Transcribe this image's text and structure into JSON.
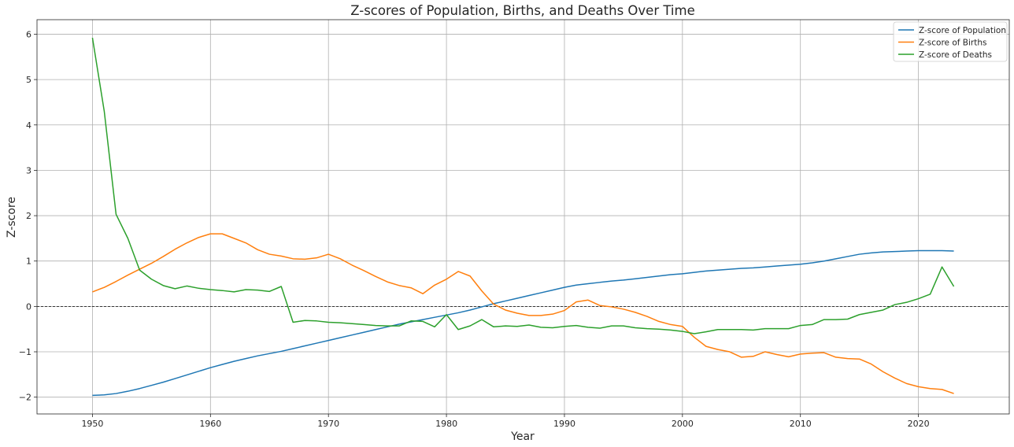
{
  "chart_data": {
    "type": "line",
    "title": "Z-scores of Population, Births, and Deaths Over Time",
    "xlabel": "Year",
    "ylabel": "Z-score",
    "xlim": [
      1945.3,
      2027.7
    ],
    "ylim": [
      -2.37,
      6.32
    ],
    "xticks": [
      1950,
      1960,
      1970,
      1980,
      1990,
      2000,
      2010,
      2020
    ],
    "yticks": [
      -2,
      -1,
      0,
      1,
      2,
      3,
      4,
      5,
      6
    ],
    "grid": true,
    "zero_line": true,
    "legend_position": "top-right",
    "x": [
      1950,
      1951,
      1952,
      1953,
      1954,
      1955,
      1956,
      1957,
      1958,
      1959,
      1960,
      1961,
      1962,
      1963,
      1964,
      1965,
      1966,
      1967,
      1968,
      1969,
      1970,
      1971,
      1972,
      1973,
      1974,
      1975,
      1976,
      1977,
      1978,
      1979,
      1980,
      1981,
      1982,
      1983,
      1984,
      1985,
      1986,
      1987,
      1988,
      1989,
      1990,
      1991,
      1992,
      1993,
      1994,
      1995,
      1996,
      1997,
      1998,
      1999,
      2000,
      2001,
      2002,
      2003,
      2004,
      2005,
      2006,
      2007,
      2008,
      2009,
      2010,
      2011,
      2012,
      2013,
      2014,
      2015,
      2016,
      2017,
      2018,
      2019,
      2020,
      2021,
      2022,
      2023
    ],
    "series": [
      {
        "name": "Z-score of Population",
        "color": "#1f77b4",
        "values": [
          -1.96,
          -1.95,
          -1.92,
          -1.87,
          -1.81,
          -1.74,
          -1.67,
          -1.59,
          -1.51,
          -1.43,
          -1.35,
          -1.28,
          -1.21,
          -1.15,
          -1.09,
          -1.04,
          -0.99,
          -0.93,
          -0.87,
          -0.81,
          -0.75,
          -0.69,
          -0.63,
          -0.57,
          -0.51,
          -0.45,
          -0.39,
          -0.34,
          -0.29,
          -0.24,
          -0.19,
          -0.14,
          -0.08,
          -0.01,
          0.06,
          0.12,
          0.18,
          0.24,
          0.3,
          0.36,
          0.42,
          0.47,
          0.5,
          0.53,
          0.56,
          0.58,
          0.61,
          0.64,
          0.67,
          0.7,
          0.72,
          0.75,
          0.78,
          0.8,
          0.82,
          0.84,
          0.85,
          0.87,
          0.89,
          0.91,
          0.93,
          0.96,
          1.0,
          1.05,
          1.1,
          1.15,
          1.18,
          1.2,
          1.21,
          1.22,
          1.23,
          1.23,
          1.23,
          1.22
        ]
      },
      {
        "name": "Z-score of Births",
        "color": "#ff7f0e",
        "values": [
          0.32,
          0.42,
          0.55,
          0.69,
          0.82,
          0.95,
          1.1,
          1.26,
          1.4,
          1.52,
          1.6,
          1.6,
          1.5,
          1.4,
          1.25,
          1.15,
          1.11,
          1.05,
          1.04,
          1.07,
          1.15,
          1.05,
          0.91,
          0.79,
          0.66,
          0.54,
          0.46,
          0.41,
          0.28,
          0.47,
          0.6,
          0.77,
          0.67,
          0.34,
          0.05,
          -0.08,
          -0.15,
          -0.2,
          -0.2,
          -0.17,
          -0.09,
          0.1,
          0.14,
          0.02,
          -0.01,
          -0.06,
          -0.13,
          -0.22,
          -0.33,
          -0.4,
          -0.44,
          -0.68,
          -0.88,
          -0.95,
          -1.0,
          -1.12,
          -1.1,
          -1.0,
          -1.06,
          -1.11,
          -1.05,
          -1.03,
          -1.02,
          -1.12,
          -1.15,
          -1.16,
          -1.27,
          -1.44,
          -1.58,
          -1.7,
          -1.77,
          -1.81,
          -1.83,
          -1.92
        ]
      },
      {
        "name": "Z-score of Deaths",
        "color": "#2ca02c",
        "values": [
          5.92,
          4.3,
          2.03,
          1.5,
          0.8,
          0.6,
          0.46,
          0.39,
          0.45,
          0.4,
          0.37,
          0.35,
          0.32,
          0.37,
          0.36,
          0.33,
          0.44,
          -0.35,
          -0.31,
          -0.32,
          -0.35,
          -0.36,
          -0.38,
          -0.4,
          -0.42,
          -0.43,
          -0.43,
          -0.32,
          -0.33,
          -0.45,
          -0.18,
          -0.51,
          -0.43,
          -0.29,
          -0.45,
          -0.43,
          -0.44,
          -0.41,
          -0.46,
          -0.47,
          -0.44,
          -0.42,
          -0.46,
          -0.48,
          -0.43,
          -0.43,
          -0.47,
          -0.49,
          -0.5,
          -0.52,
          -0.55,
          -0.6,
          -0.56,
          -0.51,
          -0.51,
          -0.51,
          -0.52,
          -0.49,
          -0.49,
          -0.49,
          -0.42,
          -0.4,
          -0.29,
          -0.29,
          -0.28,
          -0.18,
          -0.13,
          -0.08,
          0.04,
          0.09,
          0.17,
          0.27,
          0.87,
          0.44
        ]
      }
    ]
  }
}
